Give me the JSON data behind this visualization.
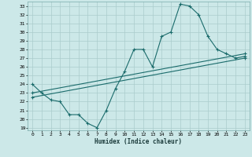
{
  "xlabel": "Humidex (Indice chaleur)",
  "bg_color": "#cce8e8",
  "grid_color": "#aacccc",
  "line_color": "#1a6b6b",
  "xlim": [
    -0.5,
    23.5
  ],
  "ylim_min": 18.7,
  "ylim_max": 33.5,
  "yticks": [
    19,
    20,
    21,
    22,
    23,
    24,
    25,
    26,
    27,
    28,
    29,
    30,
    31,
    32,
    33
  ],
  "xticks": [
    0,
    1,
    2,
    3,
    4,
    5,
    6,
    7,
    8,
    9,
    10,
    11,
    12,
    13,
    14,
    15,
    16,
    17,
    18,
    19,
    20,
    21,
    22,
    23
  ],
  "curve1_x": [
    0,
    1,
    2,
    3,
    4,
    5,
    6,
    7,
    8,
    9,
    10,
    11,
    12,
    13,
    14,
    15,
    16,
    17,
    18,
    19,
    20,
    21,
    22,
    23
  ],
  "curve1_y": [
    24.0,
    23.0,
    22.2,
    22.0,
    20.5,
    20.5,
    19.5,
    19.0,
    21.0,
    23.5,
    25.5,
    28.0,
    28.0,
    26.0,
    29.5,
    30.0,
    33.2,
    33.0,
    32.0,
    29.5,
    28.0,
    27.5,
    27.0,
    27.2
  ],
  "curve2_x": [
    0,
    23
  ],
  "curve2_y": [
    23.0,
    27.5
  ],
  "curve3_x": [
    0,
    23
  ],
  "curve3_y": [
    22.5,
    27.0
  ]
}
